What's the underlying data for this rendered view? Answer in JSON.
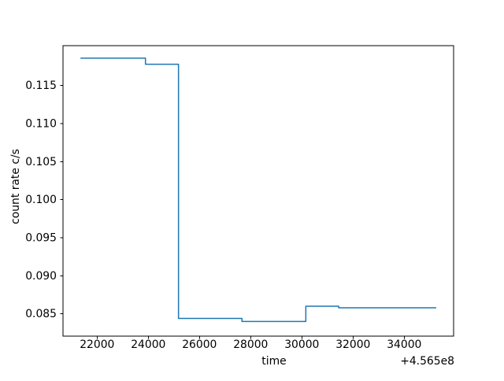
{
  "chart_data": {
    "type": "line",
    "drawstyle": "steps-post",
    "title": "",
    "xlabel": "time",
    "ylabel": "count rate c/s",
    "x_offset_text": "+4.565e8",
    "xlim": [
      20668,
      35929
    ],
    "ylim": [
      0.08207,
      0.12024
    ],
    "xticks": [
      22000,
      24000,
      26000,
      28000,
      30000,
      32000,
      34000
    ],
    "xtick_labels": [
      "22000",
      "24000",
      "26000",
      "28000",
      "30000",
      "32000",
      "34000"
    ],
    "yticks": [
      0.085,
      0.09,
      0.095,
      0.1,
      0.105,
      0.11,
      0.115
    ],
    "ytick_labels": [
      "0.085",
      "0.090",
      "0.095",
      "0.100",
      "0.105",
      "0.110",
      "0.115"
    ],
    "grid": false,
    "legend": "none",
    "line_color": "#1f77b4",
    "series": [
      {
        "name": "count rate",
        "color": "#1f77b4",
        "x": [
          21350,
          23890,
          25180,
          27660,
          30155,
          31440,
          35250
        ],
        "y": [
          0.1186,
          0.1178,
          0.0844,
          0.084,
          0.086,
          0.0858,
          0.0858
        ]
      }
    ]
  }
}
